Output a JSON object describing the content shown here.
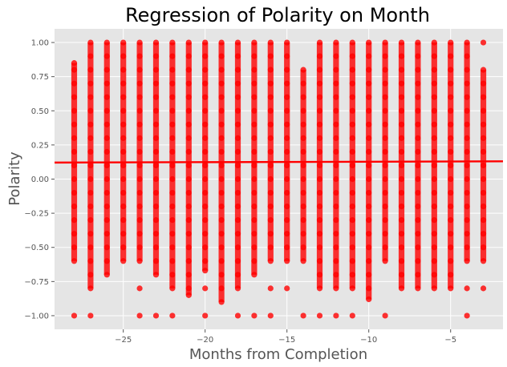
{
  "chart_data": {
    "type": "scatter",
    "title": "Regression of Polarity on Month",
    "xlabel": "Months from Completion",
    "ylabel": "Polarity",
    "xlim": [
      -29.2,
      -1.8
    ],
    "ylim": [
      -1.1,
      1.1
    ],
    "xticks": [
      {
        "value": -25,
        "label": "−25"
      },
      {
        "value": -20,
        "label": "−20"
      },
      {
        "value": -15,
        "label": "−15"
      },
      {
        "value": -10,
        "label": "−10"
      },
      {
        "value": -5,
        "label": "−5"
      }
    ],
    "yticks": [
      {
        "value": -1.0,
        "label": "−1.00"
      },
      {
        "value": -0.75,
        "label": "−0.75"
      },
      {
        "value": -0.5,
        "label": "−0.50"
      },
      {
        "value": -0.25,
        "label": "−0.25"
      },
      {
        "value": 0.0,
        "label": "0.00"
      },
      {
        "value": 0.25,
        "label": "0.25"
      },
      {
        "value": 0.5,
        "label": "0.50"
      },
      {
        "value": 0.75,
        "label": "0.75"
      },
      {
        "value": 1.0,
        "label": "1.00"
      }
    ],
    "grid": true,
    "colors": {
      "points": "#ff0000",
      "line": "#ff0000",
      "background": "#e5e5e5",
      "grid": "#ffffff"
    },
    "regression": {
      "x": [
        -29.2,
        -1.8
      ],
      "y": [
        0.121,
        0.13
      ]
    },
    "points": [
      {
        "x": -28,
        "y": [
          -1.0,
          -0.6,
          -0.5,
          -0.4,
          -0.3,
          -0.2,
          -0.1,
          0.0,
          0.1,
          0.2,
          0.3,
          0.4,
          0.5,
          0.6,
          0.7,
          0.8,
          0.85
        ]
      },
      {
        "x": -27,
        "y": [
          -1.0,
          -0.8,
          -0.7,
          -0.6,
          -0.5,
          -0.4,
          -0.3,
          -0.2,
          -0.1,
          0.0,
          0.1,
          0.2,
          0.3,
          0.4,
          0.5,
          0.6,
          0.7,
          0.8,
          0.9,
          1.0
        ]
      },
      {
        "x": -26,
        "y": [
          -0.7,
          -0.6,
          -0.5,
          -0.4,
          -0.3,
          -0.2,
          -0.1,
          0.0,
          0.1,
          0.2,
          0.3,
          0.4,
          0.5,
          0.6,
          0.7,
          0.8,
          0.9,
          1.0
        ]
      },
      {
        "x": -25,
        "y": [
          -0.6,
          -0.5,
          -0.4,
          -0.3,
          -0.2,
          -0.1,
          0.0,
          0.1,
          0.2,
          0.3,
          0.4,
          0.5,
          0.6,
          0.7,
          0.8,
          0.9,
          1.0
        ]
      },
      {
        "x": -24,
        "y": [
          -1.0,
          -0.8,
          -0.6,
          -0.5,
          -0.4,
          -0.3,
          -0.2,
          -0.1,
          0.0,
          0.1,
          0.2,
          0.3,
          0.4,
          0.5,
          0.6,
          0.7,
          0.8,
          0.9,
          1.0
        ]
      },
      {
        "x": -23,
        "y": [
          -1.0,
          -0.7,
          -0.6,
          -0.5,
          -0.4,
          -0.3,
          -0.2,
          -0.1,
          0.0,
          0.1,
          0.2,
          0.3,
          0.4,
          0.5,
          0.6,
          0.7,
          0.8,
          0.9,
          1.0
        ]
      },
      {
        "x": -22,
        "y": [
          -1.0,
          -0.8,
          -0.7,
          -0.6,
          -0.5,
          -0.4,
          -0.3,
          -0.2,
          -0.1,
          0.0,
          0.1,
          0.2,
          0.3,
          0.4,
          0.5,
          0.6,
          0.7,
          0.8,
          0.9,
          1.0
        ]
      },
      {
        "x": -21,
        "y": [
          -0.85,
          -0.8,
          -0.7,
          -0.6,
          -0.5,
          -0.4,
          -0.3,
          -0.2,
          -0.1,
          0.0,
          0.1,
          0.2,
          0.3,
          0.4,
          0.5,
          0.6,
          0.7,
          0.8,
          0.9,
          1.0
        ]
      },
      {
        "x": -20,
        "y": [
          -1.0,
          -0.8,
          -0.67,
          -0.6,
          -0.5,
          -0.4,
          -0.3,
          -0.2,
          -0.1,
          0.0,
          0.1,
          0.2,
          0.3,
          0.4,
          0.5,
          0.6,
          0.7,
          0.8,
          0.9,
          1.0
        ]
      },
      {
        "x": -19,
        "y": [
          -0.9,
          -0.8,
          -0.7,
          -0.6,
          -0.5,
          -0.4,
          -0.3,
          -0.2,
          -0.1,
          0.0,
          0.1,
          0.2,
          0.3,
          0.4,
          0.5,
          0.6,
          0.7,
          0.8,
          0.9,
          1.0
        ]
      },
      {
        "x": -18,
        "y": [
          -1.0,
          -0.8,
          -0.7,
          -0.6,
          -0.5,
          -0.4,
          -0.3,
          -0.2,
          -0.1,
          0.0,
          0.1,
          0.2,
          0.3,
          0.4,
          0.5,
          0.6,
          0.7,
          0.8,
          0.9,
          1.0
        ]
      },
      {
        "x": -17,
        "y": [
          -1.0,
          -0.7,
          -0.6,
          -0.5,
          -0.4,
          -0.3,
          -0.2,
          -0.1,
          0.0,
          0.1,
          0.2,
          0.3,
          0.4,
          0.5,
          0.6,
          0.7,
          0.8,
          0.9,
          1.0
        ]
      },
      {
        "x": -16,
        "y": [
          -1.0,
          -0.8,
          -0.6,
          -0.5,
          -0.4,
          -0.3,
          -0.2,
          -0.1,
          0.0,
          0.1,
          0.2,
          0.3,
          0.4,
          0.5,
          0.6,
          0.7,
          0.8,
          0.9,
          1.0
        ]
      },
      {
        "x": -15,
        "y": [
          -0.8,
          -0.6,
          -0.5,
          -0.4,
          -0.3,
          -0.2,
          -0.1,
          0.0,
          0.1,
          0.2,
          0.3,
          0.4,
          0.5,
          0.6,
          0.7,
          0.8,
          0.9,
          1.0
        ]
      },
      {
        "x": -14,
        "y": [
          -1.0,
          -0.6,
          -0.5,
          -0.4,
          -0.3,
          -0.2,
          -0.1,
          0.0,
          0.1,
          0.2,
          0.3,
          0.4,
          0.5,
          0.6,
          0.7,
          0.8
        ]
      },
      {
        "x": -13,
        "y": [
          -1.0,
          -0.8,
          -0.7,
          -0.6,
          -0.5,
          -0.4,
          -0.3,
          -0.2,
          -0.1,
          0.0,
          0.1,
          0.2,
          0.3,
          0.4,
          0.5,
          0.6,
          0.7,
          0.8,
          0.9,
          1.0
        ]
      },
      {
        "x": -12,
        "y": [
          -1.0,
          -0.8,
          -0.7,
          -0.6,
          -0.5,
          -0.4,
          -0.3,
          -0.2,
          -0.1,
          0.0,
          0.1,
          0.2,
          0.3,
          0.4,
          0.5,
          0.6,
          0.7,
          0.8,
          0.9,
          1.0
        ]
      },
      {
        "x": -11,
        "y": [
          -1.0,
          -0.8,
          -0.7,
          -0.6,
          -0.5,
          -0.4,
          -0.3,
          -0.2,
          -0.1,
          0.0,
          0.1,
          0.2,
          0.3,
          0.4,
          0.5,
          0.6,
          0.7,
          0.8,
          0.9,
          1.0
        ]
      },
      {
        "x": -10,
        "y": [
          -0.88,
          -0.8,
          -0.7,
          -0.6,
          -0.5,
          -0.4,
          -0.3,
          -0.2,
          -0.1,
          0.0,
          0.1,
          0.2,
          0.3,
          0.4,
          0.5,
          0.6,
          0.7,
          0.8,
          0.9,
          1.0
        ]
      },
      {
        "x": -9,
        "y": [
          -1.0,
          -0.6,
          -0.5,
          -0.4,
          -0.3,
          -0.2,
          -0.1,
          0.0,
          0.1,
          0.2,
          0.3,
          0.4,
          0.5,
          0.6,
          0.7,
          0.8,
          0.9,
          1.0
        ]
      },
      {
        "x": -8,
        "y": [
          -0.8,
          -0.7,
          -0.6,
          -0.5,
          -0.4,
          -0.3,
          -0.2,
          -0.1,
          0.0,
          0.1,
          0.2,
          0.3,
          0.4,
          0.5,
          0.6,
          0.7,
          0.8,
          0.9,
          1.0
        ]
      },
      {
        "x": -7,
        "y": [
          -0.8,
          -0.7,
          -0.6,
          -0.5,
          -0.4,
          -0.3,
          -0.2,
          -0.1,
          0.0,
          0.1,
          0.2,
          0.3,
          0.4,
          0.5,
          0.6,
          0.7,
          0.8,
          0.9,
          1.0
        ]
      },
      {
        "x": -6,
        "y": [
          -0.8,
          -0.7,
          -0.6,
          -0.5,
          -0.4,
          -0.3,
          -0.2,
          -0.1,
          0.0,
          0.1,
          0.2,
          0.3,
          0.4,
          0.5,
          0.6,
          0.7,
          0.8,
          0.9,
          1.0
        ]
      },
      {
        "x": -5,
        "y": [
          -0.8,
          -0.7,
          -0.6,
          -0.5,
          -0.4,
          -0.3,
          -0.2,
          -0.1,
          0.0,
          0.1,
          0.2,
          0.3,
          0.4,
          0.5,
          0.6,
          0.7,
          0.8,
          0.9,
          1.0
        ]
      },
      {
        "x": -4,
        "y": [
          -1.0,
          -0.8,
          -0.6,
          -0.5,
          -0.4,
          -0.3,
          -0.2,
          -0.1,
          0.0,
          0.1,
          0.2,
          0.3,
          0.4,
          0.5,
          0.6,
          0.7,
          0.8,
          0.9,
          1.0
        ]
      },
      {
        "x": -3,
        "y": [
          -0.8,
          -0.6,
          -0.5,
          -0.4,
          -0.3,
          -0.2,
          -0.1,
          0.0,
          0.1,
          0.2,
          0.3,
          0.4,
          0.5,
          0.6,
          0.7,
          0.8,
          1.0
        ]
      }
    ]
  }
}
